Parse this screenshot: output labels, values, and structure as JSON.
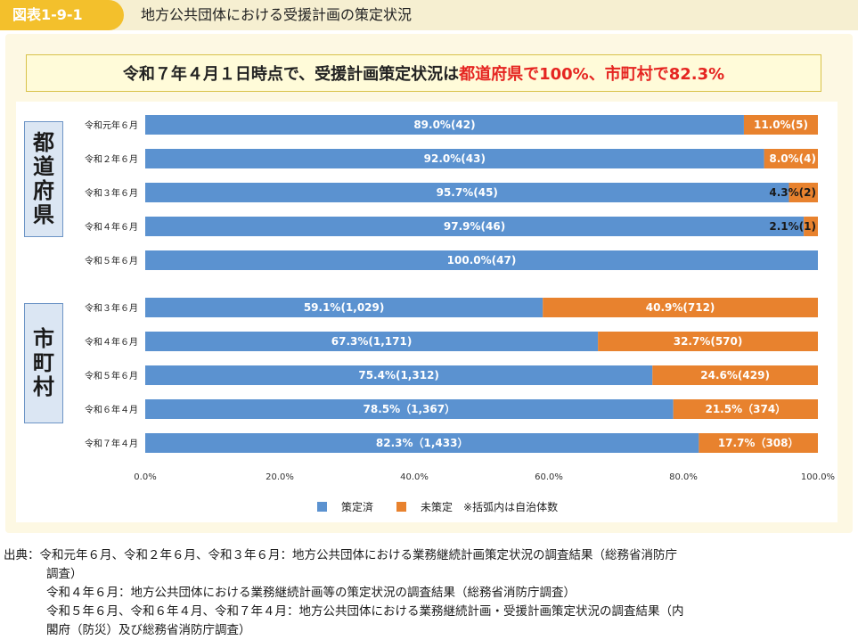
{
  "figure": {
    "label": "図表1-9-1",
    "title": "地方公共団体における受援計画の策定状況"
  },
  "summary": {
    "prefix": "令和７年４月１日時点で、受援計画策定状況は",
    "highlight": "都道府県で100%、市町村で82.3%"
  },
  "groups": {
    "prefecture": [
      "都",
      "道",
      "府",
      "県"
    ],
    "municipality": [
      "市",
      "町",
      "村"
    ]
  },
  "colors": {
    "formulated": "#5b92d0",
    "not_formulated": "#e8822e"
  },
  "legend": {
    "formulated": "策定済",
    "not_formulated": "未策定",
    "note": "※括弧内は自治体数"
  },
  "chart_data": {
    "type": "bar",
    "orientation": "horizontal",
    "stacked": true,
    "xlim": [
      0,
      100
    ],
    "x_ticks": [
      "0.0%",
      "20.0%",
      "40.0%",
      "60.0%",
      "80.0%",
      "100.0%"
    ],
    "series": [
      {
        "name": "策定済",
        "color": "#5b92d0"
      },
      {
        "name": "未策定",
        "color": "#e8822e"
      }
    ],
    "groups": [
      {
        "name": "都道府県",
        "rows": [
          {
            "label": "令和元年６月",
            "formulated": 89.0,
            "not_formulated": 11.0,
            "formulated_label": "89.0%(42)",
            "not_formulated_label": "11.0%(5)"
          },
          {
            "label": "令和２年６月",
            "formulated": 92.0,
            "not_formulated": 8.0,
            "formulated_label": "92.0%(43)",
            "not_formulated_label": "8.0%(4)"
          },
          {
            "label": "令和３年６月",
            "formulated": 95.7,
            "not_formulated": 4.3,
            "formulated_label": "95.7%(45)",
            "not_formulated_label": "4.3%(2)"
          },
          {
            "label": "令和４年６月",
            "formulated": 97.9,
            "not_formulated": 2.1,
            "formulated_label": "97.9%(46)",
            "not_formulated_label": "2.1%(1)"
          },
          {
            "label": "令和５年６月",
            "formulated": 100.0,
            "not_formulated": 0.0,
            "formulated_label": "100.0%(47)",
            "not_formulated_label": ""
          }
        ]
      },
      {
        "name": "市町村",
        "rows": [
          {
            "label": "令和３年６月",
            "formulated": 59.1,
            "not_formulated": 40.9,
            "formulated_label": "59.1%(1,029)",
            "not_formulated_label": "40.9%(712)"
          },
          {
            "label": "令和４年６月",
            "formulated": 67.3,
            "not_formulated": 32.7,
            "formulated_label": "67.3%(1,171)",
            "not_formulated_label": "32.7%(570)"
          },
          {
            "label": "令和５年６月",
            "formulated": 75.4,
            "not_formulated": 24.6,
            "formulated_label": "75.4%(1,312)",
            "not_formulated_label": "24.6%(429)"
          },
          {
            "label": "令和６年４月",
            "formulated": 78.5,
            "not_formulated": 21.5,
            "formulated_label": "78.5%（1,367）",
            "not_formulated_label": "21.5%（374）"
          },
          {
            "label": "令和７年４月",
            "formulated": 82.3,
            "not_formulated": 17.7,
            "formulated_label": "82.3%（1,433）",
            "not_formulated_label": "17.7%（308）"
          }
        ]
      }
    ]
  },
  "source": {
    "lines": [
      "出典：令和元年６月、令和２年６月、令和３年６月：地方公共団体における業務継続計画策定状況の調査結果（総務省消防庁",
      "調査）",
      "令和４年６月：地方公共団体における業務継続計画等の策定状況の調査結果（総務省消防庁調査）",
      "令和５年６月、令和６年４月、令和７年４月：地方公共団体における業務継続計画・受援計画策定状況の調査結果（内",
      "閣府（防災）及び総務省消防庁調査）"
    ]
  }
}
